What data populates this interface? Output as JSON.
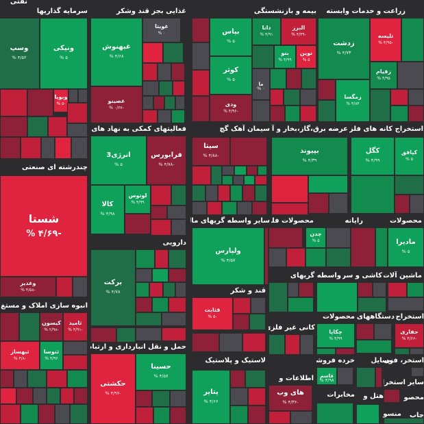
{
  "palette": {
    "G3": "#0fa05a",
    "G2": "#138a4e",
    "G1": "#1f6e47",
    "R3": "#e0233f",
    "R2": "#c21f3a",
    "R1": "#8e2137",
    "N": "#4a4a50",
    "background": "#2c2c2e"
  },
  "sectors": [
    {
      "id": "farming",
      "label": "زراعت و خدمات وابسته"
    },
    {
      "id": "insurance",
      "label": "بیمه و بازنشستگی"
    },
    {
      "id": "food",
      "label": "غذایی بجز قند وشکر"
    },
    {
      "id": "investment",
      "label": "سرمایه گذاریها"
    },
    {
      "id": "oil",
      "label": "نفتی"
    },
    {
      "id": "mining_ext",
      "label": "استخراج کانه های فلزی"
    },
    {
      "id": "utilities",
      "label": "عرضه برق،گاز،بخار و آب"
    },
    {
      "id": "cement",
      "label": "سیمان آهک گچ"
    },
    {
      "id": "credit",
      "label": "فعالیتهای کمکی به نهاد های"
    },
    {
      "id": "diversified",
      "label": "چندرشته ای صنعتی"
    },
    {
      "id": "chemicals",
      "label": "محصولات"
    },
    {
      "id": "rayaneh",
      "label": "رایانه"
    },
    {
      "id": "metal_products",
      "label": "محصولات فلزی"
    },
    {
      "id": "financial_brokers",
      "label": "سایر واسطه گریهای مالی"
    },
    {
      "id": "pharma",
      "label": "دارویی"
    },
    {
      "id": "machinery",
      "label": "ماشین آلات و"
    },
    {
      "id": "tiles",
      "label": "کاشی و سرامیک"
    },
    {
      "id": "leasing",
      "label": "واسطه گریهای"
    },
    {
      "id": "sugar",
      "label": "قند و شکر"
    },
    {
      "id": "realestate",
      "label": "انبوه سازی املاک و مستغ"
    },
    {
      "id": "appliances",
      "label": "استخراج"
    },
    {
      "id": "devices",
      "label": "دستگاههای"
    },
    {
      "id": "products",
      "label": "محصولات"
    },
    {
      "id": "nonmetal",
      "label": "کانی غیر فلزی"
    },
    {
      "id": "transport",
      "label": "حمل و نقل انبارداری و ارتباطات"
    },
    {
      "id": "retail",
      "label": "خرده فروشی"
    },
    {
      "id": "vehicles",
      "label": "وسایل"
    },
    {
      "id": "technical",
      "label": "استخر، فنی و"
    },
    {
      "id": "plastics",
      "label": "لاستیک و پلاستیک"
    },
    {
      "id": "other_mining",
      "label": "سایر استخرا"
    },
    {
      "id": "info",
      "label": "اطلاعات و"
    },
    {
      "id": "telecom",
      "label": "مخابرات"
    },
    {
      "id": "hotel",
      "label": "هتل و"
    },
    {
      "id": "mahsoulat_small",
      "label": "محصو"
    },
    {
      "id": "publishing",
      "label": "چاپ"
    },
    {
      "id": "monsour",
      "label": "منسو"
    }
  ],
  "tiles": [
    {
      "name": "وسپ",
      "pct": "۴/۵۲ %"
    },
    {
      "name": "ونیکی",
      "pct": "۵ %"
    },
    {
      "name": "وبویا",
      "pct": "-۵ %"
    },
    {
      "name": "غبهنوش",
      "pct": "۴/۶۸ %"
    },
    {
      "name": "غویتا",
      "pct": "۰ %"
    },
    {
      "name": "غصینو",
      "pct": "-۰/۶۷ %"
    },
    {
      "name": "بپاس",
      "pct": "۵ %"
    },
    {
      "name": "دانا",
      "pct": "۴/۹۱ %"
    },
    {
      "name": "البرز",
      "pct": "-۴/۳۹ %"
    },
    {
      "name": "بنو",
      "pct": "۴/۹۹ %"
    },
    {
      "name": "نوین",
      "pct": "۵ %"
    },
    {
      "name": "کوثر",
      "pct": "۵ %"
    },
    {
      "name": "ما",
      "pct": "۰ %"
    },
    {
      "name": "ودی",
      "pct": "-۴/۹۶ %"
    },
    {
      "name": "زدشت",
      "pct": "۴/۷۳ %"
    },
    {
      "name": "تلیسه",
      "pct": "-۴/۹۵ %"
    },
    {
      "name": "زقیام",
      "pct": "۴/۹۵ %"
    },
    {
      "name": "زمگسا",
      "pct": "۴/۸۴ %"
    },
    {
      "name": "کگل",
      "pct": "۴/۹۹ %"
    },
    {
      "name": "کپافق",
      "pct": "۵ %"
    },
    {
      "name": "بپیوند",
      "pct": "۴/۳۹ %"
    },
    {
      "name": "سیتا",
      "pct": "-۴/۸۸ %"
    },
    {
      "name": "انرژی3",
      "pct": "۵ %"
    },
    {
      "name": "فرابورس",
      "pct": "-۴/۷۸ %"
    },
    {
      "name": "لوتوس",
      "pct": "۴/۹۹ %"
    },
    {
      "name": "کالا",
      "pct": "۴/۹۸ %"
    },
    {
      "name": "شستا",
      "pct": "-۴/۶۹ %"
    },
    {
      "name": "وغدیر",
      "pct": "-۴/۵۸ %"
    },
    {
      "name": "چدن",
      "pct": "۵ %"
    },
    {
      "name": "مادیرا",
      "pct": "۵ %"
    },
    {
      "name": "ولپارس",
      "pct": "۴/۵۷ %"
    },
    {
      "name": "برکت",
      "pct": "۴/۷۸ %"
    },
    {
      "name": "قثابت",
      "pct": "-۵ %"
    },
    {
      "name": "کیسون",
      "pct": "-۲/۹۸ %"
    },
    {
      "name": "ثامید",
      "pct": "-۴/۹۱ %"
    },
    {
      "name": "ثنوسا",
      "pct": "۴/۹۶ %"
    },
    {
      "name": "ثبهساز",
      "pct": "-۴/۸ %"
    },
    {
      "name": "چکاپا",
      "pct": "۴/۹۹ %"
    },
    {
      "name": "حفاری",
      "pct": "-۴/۶۶ %"
    },
    {
      "name": "حسینا",
      "pct": "۴/۵۷ %"
    },
    {
      "name": "حکشتی",
      "pct": "-۴/۹۷ %"
    },
    {
      "name": "قاسم",
      "pct": "۴/۹۸ %"
    },
    {
      "name": "پتایر",
      "pct": "۴/۶۶ %"
    },
    {
      "name": "های وب",
      "pct": "-۴/۳۶ %"
    }
  ]
}
